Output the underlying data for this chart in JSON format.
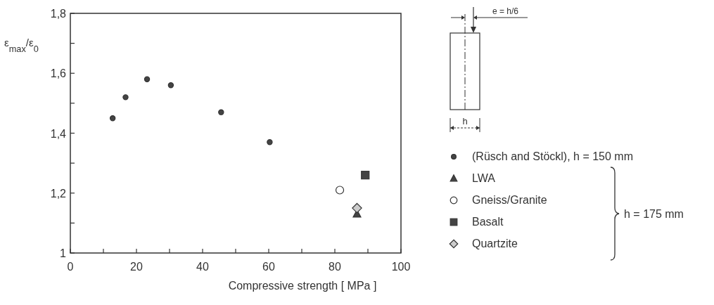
{
  "chart_data": {
    "type": "scatter",
    "xlabel": "Compressive strength  [ MPa ]",
    "ylabel": "ε$_{max}$/ε$_{0}$",
    "xlim": [
      0,
      100
    ],
    "xticks": [
      0,
      {
        "value": 10,
        "label": null
      },
      20,
      {
        "value": 30,
        "label": null
      },
      40,
      {
        "value": 50,
        "label": null
      },
      60,
      {
        "value": 70,
        "label": null
      },
      80,
      {
        "value": 90,
        "label": null
      },
      100
    ],
    "ylim": [
      1,
      1.8
    ],
    "yticks": [
      {
        "value": 1,
        "label": "1"
      },
      {
        "value": 1.1,
        "label": null
      },
      {
        "value": 1.2,
        "label": "1,2"
      },
      {
        "value": 1.3,
        "label": null
      },
      {
        "value": 1.4,
        "label": "1,4"
      },
      {
        "value": 1.5,
        "label": null
      },
      {
        "value": 1.6,
        "label": "1,6"
      },
      {
        "value": 1.7,
        "label": null
      },
      {
        "value": 1.8,
        "label": "1,8"
      }
    ],
    "grid": false,
    "legend": "right",
    "series": [
      {
        "name": "(Rüsch and Stöckl),  h = 150 mm",
        "color": "#444444",
        "marker": "circle",
        "x": [
          12.8,
          16.7,
          23.2,
          30.4,
          45.6,
          60.3
        ],
        "values": [
          1.45,
          1.52,
          1.58,
          1.56,
          1.47,
          1.37
        ]
      },
      {
        "name": "LWA",
        "color": "#444444",
        "marker": "triangle",
        "x": [
          86.7
        ],
        "values": [
          1.13
        ]
      },
      {
        "name": "Gneiss/Granite",
        "color": "#ffffff",
        "marker": "circle",
        "x": [
          81.5
        ],
        "values": [
          1.21
        ]
      },
      {
        "name": "Basalt",
        "color": "#444444",
        "marker": "square",
        "x": [
          89.2
        ],
        "values": [
          1.26
        ]
      },
      {
        "name": "Quartzite",
        "color": "#cccccc",
        "marker": "diamond",
        "x": [
          86.7
        ],
        "values": [
          1.15
        ]
      }
    ],
    "annotations": [
      "h = 175 mm",
      "e = h/6",
      "h"
    ]
  }
}
